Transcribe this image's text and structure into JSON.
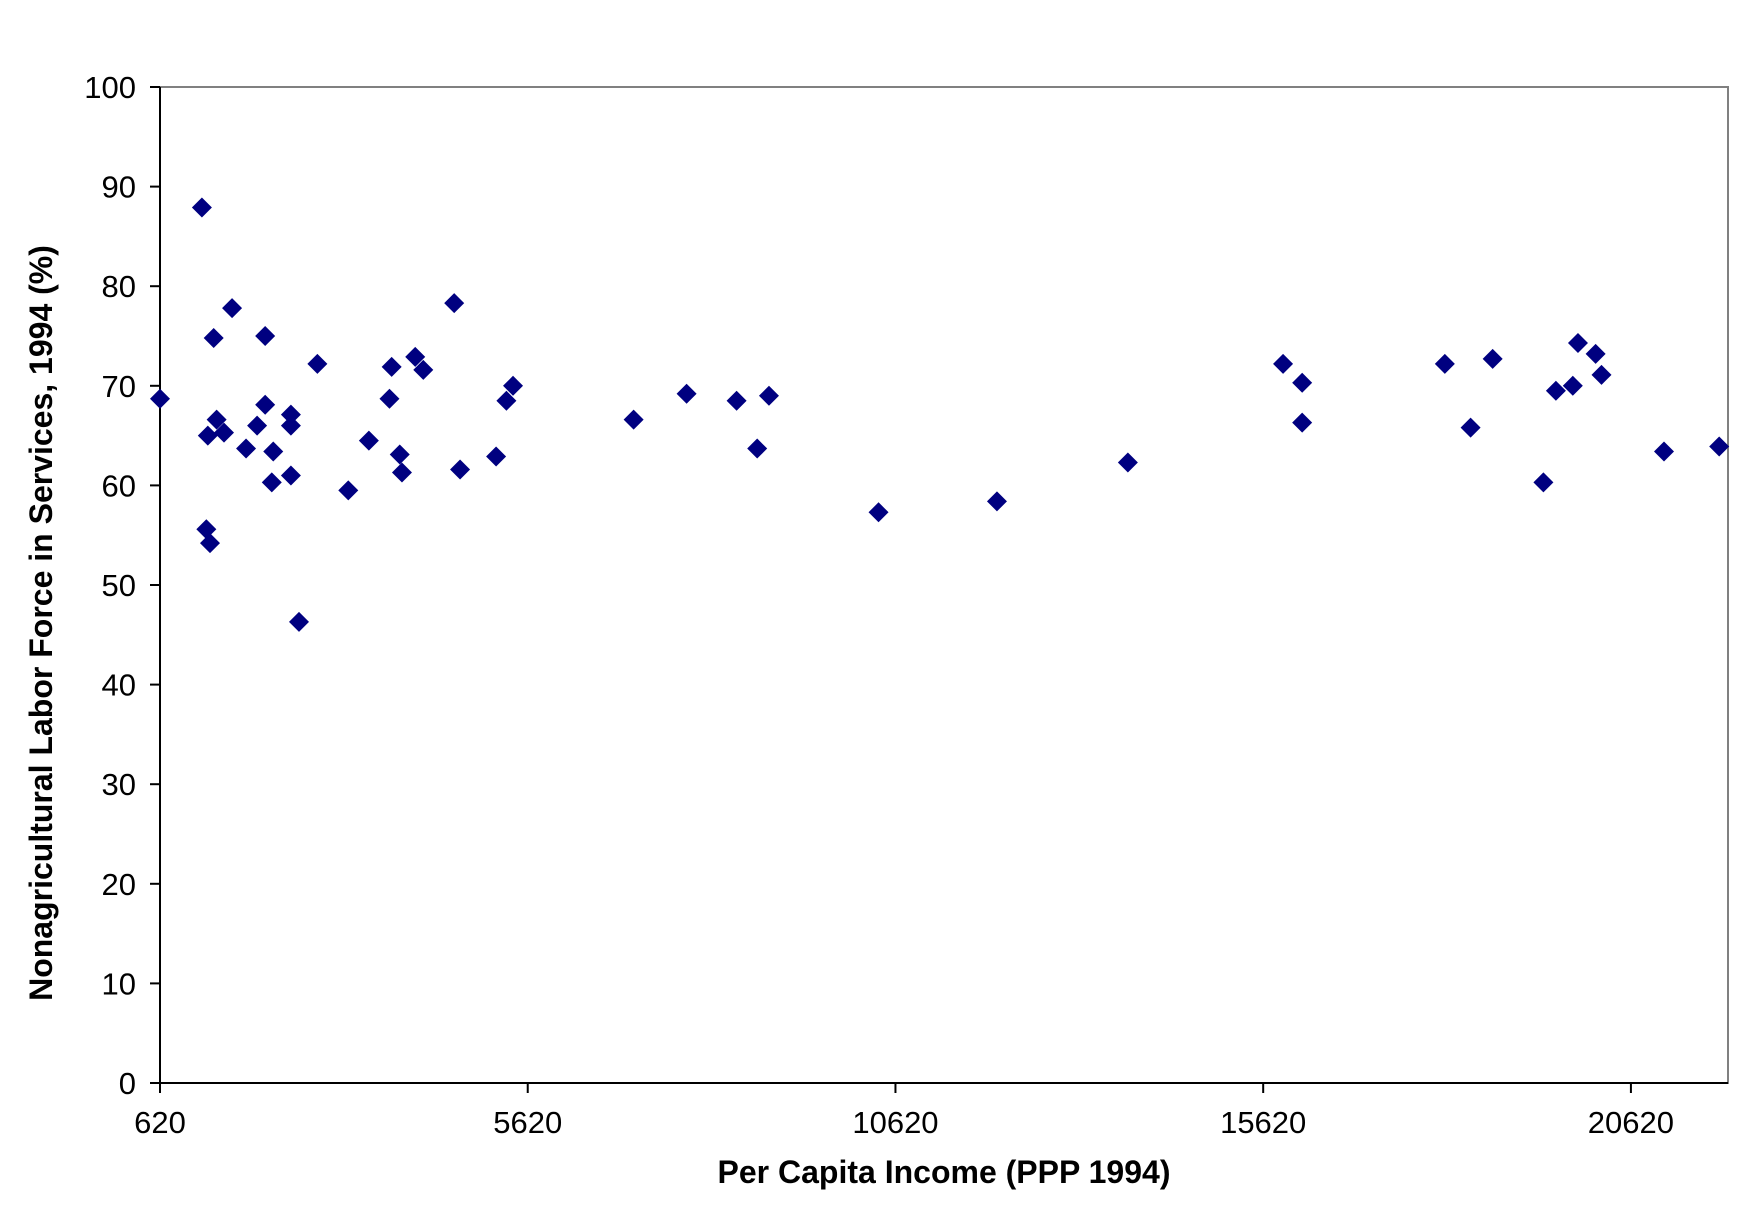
{
  "chart_data": {
    "type": "scatter",
    "title": "",
    "xlabel": "Per Capita Income (PPP 1994)",
    "ylabel": "Nonagricultural Labor Force in Services, 1994 (%)",
    "xlim": [
      620,
      21940
    ],
    "ylim": [
      0,
      100
    ],
    "x_ticks": [
      620,
      5620,
      10620,
      15620,
      20620
    ],
    "x_tick_labels": [
      "620",
      "5620",
      "10620",
      "15620",
      "20620"
    ],
    "y_ticks": [
      0,
      10,
      20,
      30,
      40,
      50,
      60,
      70,
      80,
      90,
      100
    ],
    "y_tick_labels": [
      "0",
      "10",
      "20",
      "30",
      "40",
      "50",
      "60",
      "70",
      "80",
      "90",
      "100"
    ],
    "grid": false,
    "marker": "diamond",
    "marker_color": "#000080",
    "series": [
      {
        "points": [
          [
            620,
            68.7
          ],
          [
            1190,
            87.9
          ],
          [
            1250,
            55.6
          ],
          [
            1270,
            65.0
          ],
          [
            1300,
            54.2
          ],
          [
            1350,
            74.8
          ],
          [
            1390,
            66.6
          ],
          [
            1490,
            65.3
          ],
          [
            1600,
            77.8
          ],
          [
            1790,
            63.7
          ],
          [
            1940,
            66.0
          ],
          [
            2050,
            75.0
          ],
          [
            2050,
            68.1
          ],
          [
            2140,
            60.3
          ],
          [
            2160,
            63.4
          ],
          [
            2400,
            67.1
          ],
          [
            2400,
            66.0
          ],
          [
            2400,
            61.0
          ],
          [
            2510,
            46.3
          ],
          [
            2760,
            72.2
          ],
          [
            3180,
            59.5
          ],
          [
            3460,
            64.5
          ],
          [
            3740,
            68.7
          ],
          [
            3770,
            71.9
          ],
          [
            3880,
            63.1
          ],
          [
            3910,
            61.3
          ],
          [
            4090,
            72.9
          ],
          [
            4200,
            71.6
          ],
          [
            4620,
            78.3
          ],
          [
            4700,
            61.6
          ],
          [
            5190,
            62.9
          ],
          [
            5330,
            68.5
          ],
          [
            5420,
            70.0
          ],
          [
            7060,
            66.6
          ],
          [
            7780,
            69.2
          ],
          [
            8460,
            68.5
          ],
          [
            8740,
            63.7
          ],
          [
            8900,
            69.0
          ],
          [
            10390,
            57.3
          ],
          [
            12000,
            58.4
          ],
          [
            13780,
            62.3
          ],
          [
            15890,
            72.2
          ],
          [
            16150,
            70.3
          ],
          [
            16150,
            66.3
          ],
          [
            18090,
            72.2
          ],
          [
            18440,
            65.8
          ],
          [
            18740,
            72.7
          ],
          [
            19430,
            60.3
          ],
          [
            19600,
            69.5
          ],
          [
            19830,
            70.0
          ],
          [
            19900,
            74.3
          ],
          [
            20140,
            73.2
          ],
          [
            20220,
            71.1
          ],
          [
            21070,
            63.4
          ],
          [
            21820,
            63.9
          ]
        ]
      }
    ]
  }
}
